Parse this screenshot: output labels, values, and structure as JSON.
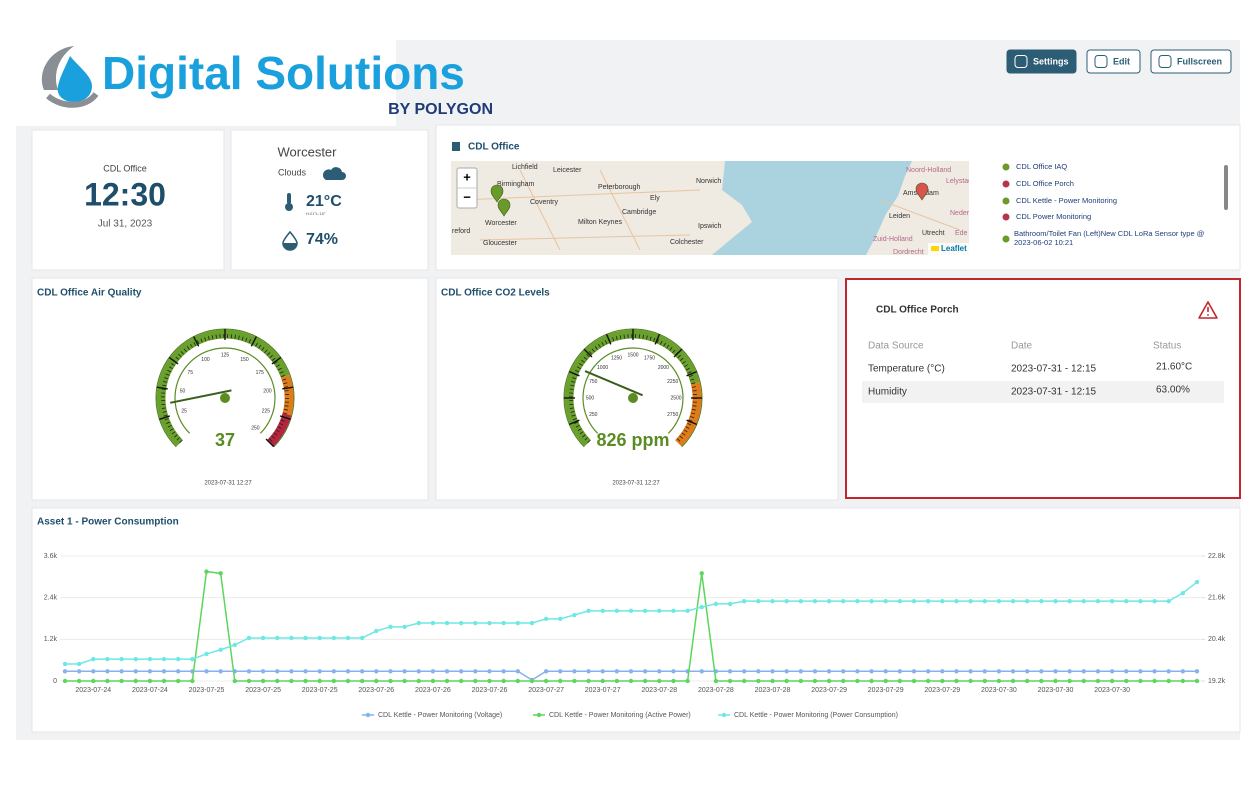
{
  "header": {
    "logo_title": "Digital Solutions",
    "logo_subtitle": "BY POLYGON",
    "buttons": [
      "Settings",
      "Edit",
      "Fullscreen"
    ]
  },
  "clock": {
    "location": "CDL Office",
    "time": "12:30",
    "date": "Jul 31, 2023"
  },
  "weather": {
    "city": "Worcester",
    "condition": "Clouds",
    "temperature": "21°C",
    "high_low": "H:21°L:15°",
    "humidity": "74%"
  },
  "map": {
    "title": "CDL Office",
    "zoom_in": "+",
    "zoom_out": "−",
    "attribution": "Leaflet",
    "places": [
      "Lichfield",
      "Leicester",
      "Birmingham",
      "Peterborough",
      "Norwich",
      "Coventry",
      "Ely",
      "Cambridge",
      "Milton Keynes",
      "Ipswich",
      "Worcester",
      "reford",
      "Gloucester",
      "Colchester",
      "Noord-Holland",
      "Amsterdam",
      "Lelystad",
      "Leiden",
      "Nederl",
      "Utrecht",
      "Ede",
      "Zuid-Holland",
      "Dordrecht"
    ],
    "legend": [
      {
        "label": "CDL Office IAQ",
        "color": "#6a9a2a"
      },
      {
        "label": "CDL Office Porch",
        "color": "#b5364a"
      },
      {
        "label": "CDL Kettle - Power Monitoring",
        "color": "#6a9a2a"
      },
      {
        "label": "CDL Power Monitoring",
        "color": "#b5364a"
      },
      {
        "label": "Bathroom/Toilet Fan (Left)New CDL LoRa Sensor type @ 2023-06-02 10:21",
        "color": "#6a9a2a"
      }
    ]
  },
  "gauges": [
    {
      "title": "CDL Office Air Quality",
      "value": 37,
      "lim": [
        0,
        250
      ],
      "ticks": [
        25,
        50,
        75,
        100,
        125,
        150,
        175,
        200,
        225,
        250
      ],
      "color": "#5b8c23",
      "bands": [
        {
          "to": 190,
          "color": "#6aa12c"
        },
        {
          "to": 222,
          "color": "#e07b1a"
        },
        {
          "to": 250,
          "color": "#b3263e"
        }
      ],
      "timestamp": "2023-07-31 12:27"
    },
    {
      "title": "CDL Office CO2 Levels",
      "value": 826,
      "value_label": "826 ppm",
      "lim": [
        0,
        3000
      ],
      "ticks": [
        250,
        500,
        750,
        1000,
        1250,
        1500,
        1750,
        2000,
        2250,
        2500,
        2750
      ],
      "color": "#5b8c23",
      "bands": [
        {
          "to": 2350,
          "color": "#6aa12c"
        },
        {
          "to": 3000,
          "color": "#e07b1a"
        }
      ],
      "timestamp": "2023-07-31 12:27"
    }
  ],
  "status_table": {
    "title": "CDL Office Porch",
    "headers": [
      "Data Source",
      "Date",
      "Status"
    ],
    "rows": [
      [
        "Temperature (°C)",
        "2023-07-31 - 12:15",
        "21.60°C"
      ],
      [
        "Humidity",
        "2023-07-31 - 12:15",
        "63.00%"
      ]
    ]
  },
  "chart_data": {
    "type": "line",
    "title": "Asset 1 - Power Consumption",
    "categories": [
      null,
      null,
      "2023-07-24",
      null,
      null,
      null,
      "2023-07-24",
      null,
      null,
      null,
      "2023-07-25",
      null,
      null,
      null,
      "2023-07-25",
      null,
      null,
      null,
      "2023-07-25",
      null,
      null,
      null,
      "2023-07-26",
      null,
      null,
      null,
      "2023-07-26",
      null,
      null,
      null,
      "2023-07-26",
      null,
      null,
      null,
      "2023-07-27",
      null,
      null,
      null,
      "2023-07-27",
      null,
      null,
      null,
      "2023-07-28",
      null,
      null,
      null,
      "2023-07-28",
      null,
      null,
      null,
      "2023-07-28",
      null,
      null,
      null,
      "2023-07-29",
      null,
      null,
      null,
      "2023-07-29",
      null,
      null,
      null,
      "2023-07-29",
      null,
      null,
      null,
      "2023-07-30",
      null,
      null,
      null,
      "2023-07-30",
      null,
      null,
      null,
      "2023-07-30",
      null,
      null,
      null,
      null,
      null,
      null
    ],
    "series": [
      {
        "name": "CDL Kettle - Power Monitoring (Voltage)",
        "color": "#86b2ee",
        "values": [
          280,
          280,
          280,
          280,
          280,
          280,
          280,
          280,
          280,
          280,
          280,
          280,
          280,
          280,
          280,
          280,
          280,
          280,
          280,
          280,
          280,
          280,
          280,
          280,
          280,
          280,
          280,
          280,
          280,
          280,
          280,
          280,
          280,
          30,
          280,
          280,
          280,
          280,
          280,
          280,
          280,
          280,
          280,
          280,
          280,
          280,
          280,
          280,
          280,
          280,
          280,
          280,
          280,
          280,
          280,
          280,
          280,
          280,
          280,
          280,
          280,
          280,
          280,
          280,
          280,
          280,
          280,
          280,
          280,
          280,
          280,
          280,
          280,
          280,
          280,
          280,
          280,
          280,
          280,
          280,
          280
        ]
      },
      {
        "name": "CDL Kettle - Power Monitoring (Active Power)",
        "color": "#5cd65c",
        "values": [
          0,
          0,
          0,
          0,
          0,
          0,
          0,
          0,
          0,
          0,
          3150,
          3100,
          0,
          0,
          0,
          0,
          0,
          0,
          0,
          0,
          0,
          0,
          0,
          0,
          0,
          0,
          0,
          0,
          0,
          0,
          0,
          0,
          0,
          0,
          0,
          0,
          0,
          0,
          0,
          0,
          0,
          0,
          0,
          0,
          0,
          3100,
          0,
          0,
          0,
          0,
          0,
          0,
          0,
          0,
          0,
          0,
          0,
          0,
          0,
          0,
          0,
          0,
          0,
          0,
          0,
          0,
          0,
          0,
          0,
          0,
          0,
          0,
          0,
          0,
          0,
          0,
          0,
          0,
          0,
          0,
          0
        ]
      },
      {
        "name": "CDL Kettle - Power Monitoring (Power Consumption)",
        "color": "#6ee8e4",
        "axis": "y2",
        "values": [
          19690,
          19690,
          19830,
          19830,
          19830,
          19830,
          19830,
          19830,
          19830,
          19830,
          19980,
          20100,
          20240,
          20440,
          20440,
          20440,
          20440,
          20440,
          20440,
          20440,
          20440,
          20440,
          20640,
          20760,
          20760,
          20870,
          20870,
          20870,
          20870,
          20870,
          20870,
          20870,
          20870,
          20870,
          20990,
          20990,
          21100,
          21220,
          21220,
          21220,
          21220,
          21220,
          21220,
          21220,
          21220,
          21330,
          21420,
          21420,
          21500,
          21500,
          21500,
          21500,
          21500,
          21500,
          21500,
          21500,
          21500,
          21500,
          21500,
          21500,
          21500,
          21500,
          21500,
          21500,
          21500,
          21500,
          21500,
          21500,
          21500,
          21500,
          21500,
          21500,
          21500,
          21500,
          21500,
          21500,
          21500,
          21500,
          21500,
          21730,
          22050
        ]
      }
    ],
    "ylim": [
      0,
      3600
    ],
    "yticks": [
      0,
      {
        "value": 1200,
        "label": "1.2k"
      },
      {
        "value": 2400,
        "label": "2.4k"
      },
      {
        "value": 3600,
        "label": "3.6k"
      }
    ],
    "y2lim": [
      19200,
      22800
    ],
    "y2ticks": [
      {
        "value": 19200,
        "label": "19.2k"
      },
      {
        "value": 20400,
        "label": "20.4k"
      },
      {
        "value": 21600,
        "label": "21.6k"
      },
      {
        "value": 22800,
        "label": "22.8k"
      }
    ],
    "grid": true,
    "legend": "bottom"
  }
}
